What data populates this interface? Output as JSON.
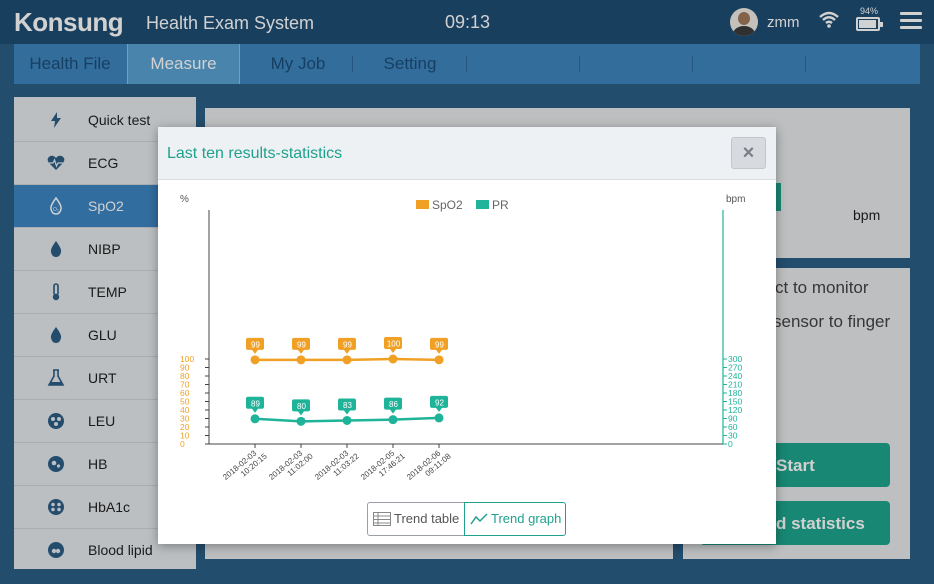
{
  "header": {
    "logo": "Konsung",
    "app_title": "Health Exam System",
    "clock": "09:13",
    "username": "zmm",
    "battery_pct": "94%",
    "battery_level": 0.94
  },
  "tabs": [
    {
      "label": "Health File"
    },
    {
      "label": "Measure"
    },
    {
      "label": "My Job"
    },
    {
      "label": "Setting"
    }
  ],
  "sidebar": {
    "items": [
      {
        "label": "Quick test",
        "icon": "lightning-icon"
      },
      {
        "label": "ECG",
        "icon": "heart-pulse-icon"
      },
      {
        "label": "SpO2",
        "icon": "drop-icon"
      },
      {
        "label": "NIBP",
        "icon": "drop-icon"
      },
      {
        "label": "TEMP",
        "icon": "thermometer-icon"
      },
      {
        "label": "GLU",
        "icon": "drop-icon"
      },
      {
        "label": "URT",
        "icon": "flask-icon"
      },
      {
        "label": "LEU",
        "icon": "cells-icon"
      },
      {
        "label": "HB",
        "icon": "cells-icon"
      },
      {
        "label": "HbA1c",
        "icon": "cells-icon"
      },
      {
        "label": "Blood lipid",
        "icon": "cells-icon"
      }
    ]
  },
  "background": {
    "bpm_unit": "bpm",
    "hint_line1": "ct to monitor",
    "hint_line2": "sensor to finger",
    "start_label": "Start",
    "stats_label": "d statistics"
  },
  "modal": {
    "title": "Last ten results-statistics",
    "close_label": "×",
    "trend_table_label": "Trend table",
    "trend_graph_label": "Trend graph"
  },
  "chart_data": {
    "type": "line",
    "left_axis_unit": "%",
    "right_axis_unit": "bpm",
    "left_ylim": [
      0,
      100
    ],
    "right_ylim": [
      0,
      300
    ],
    "left_ticks": [
      0,
      10,
      20,
      30,
      40,
      50,
      60,
      70,
      80,
      90,
      100
    ],
    "right_ticks": [
      0,
      30,
      60,
      90,
      120,
      150,
      180,
      210,
      240,
      270,
      300
    ],
    "x": [
      "2018-02-03 10:20:15",
      "2018-02-03 11:02:00",
      "2018-02-03 11:03:22",
      "2018-02-05 17:46:21",
      "2018-02-06 09:11:08"
    ],
    "series": [
      {
        "name": "SpO2",
        "axis": "left",
        "color": "#f0a125",
        "values": [
          99,
          99,
          99,
          100,
          99
        ]
      },
      {
        "name": "PR",
        "axis": "right",
        "color": "#1fb39a",
        "values": [
          89,
          80,
          83,
          86,
          92
        ]
      }
    ],
    "legend": "top"
  }
}
